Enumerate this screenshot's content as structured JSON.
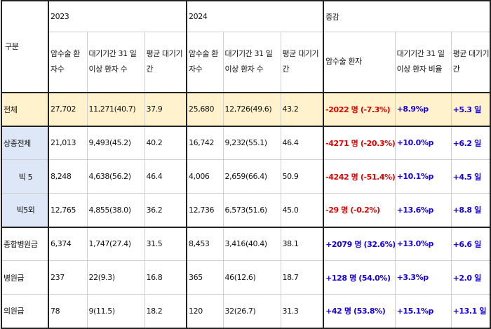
{
  "header": {
    "gubun": "구분",
    "year2023": "2023",
    "year2024": "2024",
    "change": "증감",
    "col_patients": "암수술 환자수",
    "col_31days": "대기기간 31 일 이상 환자 수",
    "col_avg": "평균 대기기간",
    "col_change_patients": "암수술 환자",
    "col_change_31ratio": "대기기간 31 일 이상 환자 비율",
    "col_change_avg": "평균 대기기간"
  },
  "rows": [
    {
      "label": "전체",
      "p23": "27,702",
      "d23": "11,271(40.7)",
      "a23": "37.9",
      "p24": "25,680",
      "d24": "12,726(49.6)",
      "a24": "43.2",
      "cp": "-2022 명 (-7.3%)",
      "cr": "+8.9%p",
      "ca": "+5.3 일"
    },
    {
      "label": "상종전체",
      "p23": "21,013",
      "d23": "9,493(45.2)",
      "a23": "40.2",
      "p24": "16,742",
      "d24": "9,232(55.1)",
      "a24": "46.4",
      "cp": "-4271 명 (-20.3%)",
      "cr": "+10.0%p",
      "ca": "+6.2 일"
    },
    {
      "label": "빅 5",
      "p23": "8,248",
      "d23": "4,638(56.2)",
      "a23": "46.4",
      "p24": "4,006",
      "d24": "2,659(66.4)",
      "a24": "50.9",
      "cp": "-4242 명 (-51.4%)",
      "cr": "+10.1%p",
      "ca": "+4.5 일"
    },
    {
      "label": "빅5외",
      "p23": "12,765",
      "d23": "4,855(38.0)",
      "a23": "36.2",
      "p24": "12,736",
      "d24": "6,573(51.6)",
      "a24": "45.0",
      "cp": "-29 명 (-0.2%)",
      "cr": "+13.6%p",
      "ca": "+8.8 일"
    },
    {
      "label": "종합병원급",
      "p23": "6,374",
      "d23": "1,747(27.4)",
      "a23": "31.5",
      "p24": "8,453",
      "d24": "3,416(40.4)",
      "a24": "38.1",
      "cp": "+2079 명 (32.6%)",
      "cr": "+13.0%p",
      "ca": "+6.6 일"
    },
    {
      "label": "병원급",
      "p23": "237",
      "d23": "22(9.3)",
      "a23": "16.8",
      "p24": "365",
      "d24": "46(12.6)",
      "a24": "18.7",
      "cp": "+128 명 (54.0%)",
      "cr": "+3.3%p",
      "ca": "+2.0 일"
    },
    {
      "label": "의원급",
      "p23": "78",
      "d23": "9(11.5)",
      "a23": "18.2",
      "p24": "120",
      "d24": "32(26.7)",
      "a24": "31.3",
      "cp": "+42 명 (53.8%)",
      "cr": "+15.1%p",
      "ca": "+13.1 일"
    }
  ],
  "colors": {
    "negative": "#e00000",
    "positive": "#1400e0",
    "total_bg": "#fff2cc",
    "sub_bg": "#dde7f7"
  }
}
